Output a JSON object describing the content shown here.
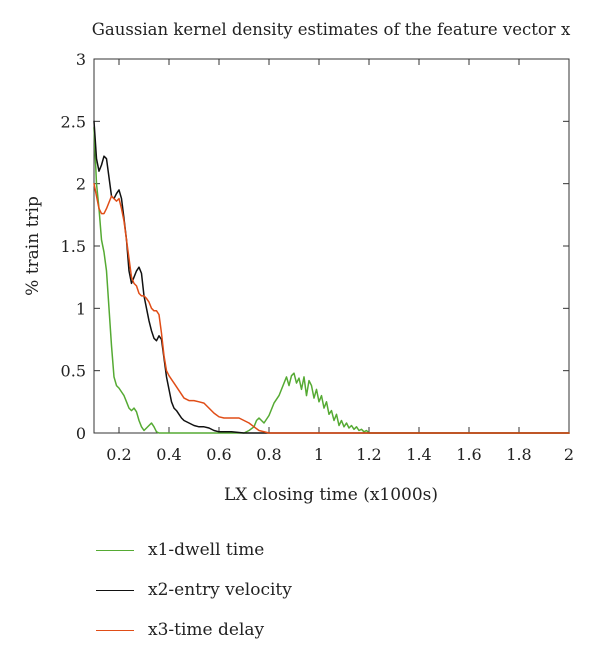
{
  "chart_data": {
    "type": "line",
    "title": "Gaussian kernel density estimates of the feature vector x",
    "xlabel": "LX closing time (x1000s)",
    "ylabel": "% train trip",
    "xlim": [
      0.1,
      2
    ],
    "ylim": [
      0,
      3
    ],
    "xticks": [
      0.2,
      0.4,
      0.6,
      0.8,
      1,
      1.2,
      1.4,
      1.6,
      1.8,
      2
    ],
    "xtick_labels": [
      "0.2",
      "0.4",
      "0.6",
      "0.8",
      "1",
      "1.2",
      "1.4",
      "1.6",
      "1.8",
      "2"
    ],
    "yticks": [
      0,
      0.5,
      1,
      1.5,
      2,
      2.5,
      3
    ],
    "ytick_labels": [
      "0",
      "0.5",
      "1",
      "1.5",
      "2",
      "2.5",
      "3"
    ],
    "grid": false,
    "legend_position": "bottom-left",
    "series": [
      {
        "name": "x1-dwell time",
        "color": "#55aa33",
        "x": [
          0.1,
          0.11,
          0.12,
          0.13,
          0.14,
          0.15,
          0.16,
          0.17,
          0.18,
          0.19,
          0.2,
          0.21,
          0.22,
          0.23,
          0.24,
          0.25,
          0.26,
          0.27,
          0.28,
          0.29,
          0.3,
          0.31,
          0.32,
          0.33,
          0.34,
          0.35,
          0.36,
          0.37,
          0.38,
          0.4,
          0.5,
          0.6,
          0.7,
          0.72,
          0.74,
          0.75,
          0.76,
          0.78,
          0.8,
          0.82,
          0.84,
          0.86,
          0.87,
          0.88,
          0.89,
          0.9,
          0.91,
          0.92,
          0.93,
          0.94,
          0.95,
          0.96,
          0.97,
          0.98,
          0.99,
          1.0,
          1.01,
          1.02,
          1.03,
          1.04,
          1.05,
          1.06,
          1.07,
          1.08,
          1.09,
          1.1,
          1.11,
          1.12,
          1.13,
          1.14,
          1.15,
          1.16,
          1.17,
          1.18,
          1.19,
          1.2,
          1.25,
          1.5,
          2.0
        ],
        "y": [
          2.45,
          2.0,
          1.8,
          1.55,
          1.45,
          1.3,
          1.0,
          0.7,
          0.45,
          0.38,
          0.36,
          0.33,
          0.3,
          0.25,
          0.2,
          0.18,
          0.2,
          0.17,
          0.1,
          0.05,
          0.02,
          0.04,
          0.06,
          0.08,
          0.05,
          0.01,
          0.0,
          0.0,
          0.0,
          0.0,
          0.0,
          0.0,
          0.0,
          0.02,
          0.05,
          0.1,
          0.12,
          0.08,
          0.14,
          0.24,
          0.3,
          0.4,
          0.45,
          0.38,
          0.46,
          0.48,
          0.4,
          0.44,
          0.35,
          0.45,
          0.3,
          0.42,
          0.38,
          0.28,
          0.35,
          0.25,
          0.3,
          0.2,
          0.25,
          0.15,
          0.18,
          0.1,
          0.15,
          0.06,
          0.1,
          0.05,
          0.08,
          0.04,
          0.06,
          0.03,
          0.05,
          0.02,
          0.03,
          0.01,
          0.02,
          0.0,
          0.0,
          0.0,
          0.0
        ]
      },
      {
        "name": "x2-entry velocity",
        "color": "#111111",
        "x": [
          0.1,
          0.11,
          0.12,
          0.13,
          0.14,
          0.15,
          0.16,
          0.17,
          0.18,
          0.19,
          0.2,
          0.21,
          0.22,
          0.23,
          0.24,
          0.25,
          0.26,
          0.27,
          0.28,
          0.29,
          0.3,
          0.31,
          0.32,
          0.33,
          0.34,
          0.35,
          0.36,
          0.37,
          0.38,
          0.39,
          0.4,
          0.41,
          0.42,
          0.43,
          0.44,
          0.45,
          0.46,
          0.48,
          0.5,
          0.52,
          0.54,
          0.56,
          0.58,
          0.6,
          0.65,
          0.7,
          0.8,
          1.0,
          1.5,
          2.0
        ],
        "y": [
          2.5,
          2.2,
          2.1,
          2.15,
          2.22,
          2.2,
          2.05,
          1.9,
          1.88,
          1.92,
          1.95,
          1.88,
          1.72,
          1.55,
          1.3,
          1.2,
          1.25,
          1.3,
          1.33,
          1.28,
          1.1,
          1.0,
          0.9,
          0.82,
          0.76,
          0.74,
          0.78,
          0.75,
          0.6,
          0.45,
          0.35,
          0.25,
          0.2,
          0.18,
          0.15,
          0.12,
          0.1,
          0.08,
          0.06,
          0.05,
          0.05,
          0.04,
          0.02,
          0.01,
          0.01,
          0.0,
          0.0,
          0.0,
          0.0,
          0.0
        ]
      },
      {
        "name": "x3-time delay",
        "color": "#e04d17",
        "x": [
          0.1,
          0.11,
          0.12,
          0.13,
          0.14,
          0.15,
          0.16,
          0.17,
          0.18,
          0.19,
          0.2,
          0.21,
          0.22,
          0.23,
          0.24,
          0.25,
          0.26,
          0.27,
          0.28,
          0.29,
          0.3,
          0.31,
          0.32,
          0.33,
          0.34,
          0.35,
          0.36,
          0.37,
          0.38,
          0.39,
          0.4,
          0.42,
          0.44,
          0.46,
          0.48,
          0.5,
          0.52,
          0.54,
          0.56,
          0.58,
          0.6,
          0.62,
          0.64,
          0.66,
          0.68,
          0.7,
          0.72,
          0.74,
          0.76,
          0.8,
          1.0,
          1.5,
          2.0
        ],
        "y": [
          2.0,
          1.9,
          1.8,
          1.76,
          1.76,
          1.8,
          1.85,
          1.9,
          1.88,
          1.86,
          1.88,
          1.8,
          1.7,
          1.55,
          1.4,
          1.25,
          1.2,
          1.18,
          1.12,
          1.1,
          1.1,
          1.08,
          1.05,
          1.0,
          0.98,
          0.98,
          0.95,
          0.8,
          0.62,
          0.5,
          0.46,
          0.4,
          0.34,
          0.28,
          0.26,
          0.26,
          0.25,
          0.24,
          0.2,
          0.16,
          0.13,
          0.12,
          0.12,
          0.12,
          0.12,
          0.1,
          0.08,
          0.05,
          0.02,
          0.0,
          0.0,
          0.0,
          0.0
        ]
      }
    ]
  }
}
